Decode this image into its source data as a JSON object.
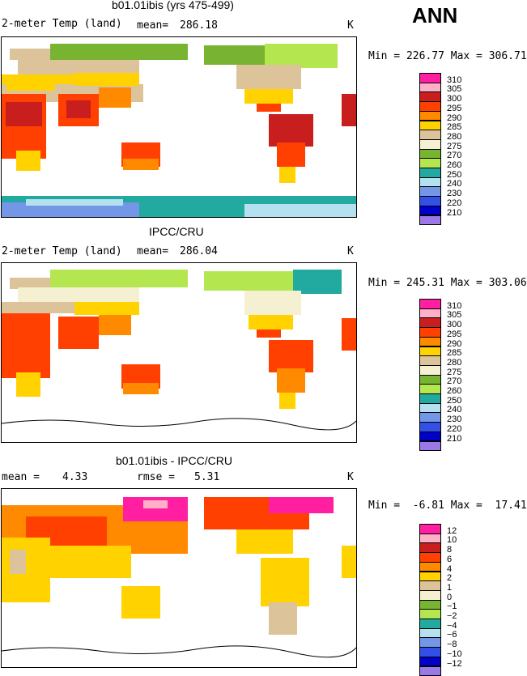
{
  "season": "ANN",
  "panels": [
    {
      "title": "b01.01ibis (yrs 475-499)",
      "left_label": "2-meter Temp (land)",
      "stat1_label": "mean=",
      "stat1_value": "286.18",
      "units": "K",
      "minmax": "Min = 226.77 Max = 306.71",
      "colorbar": {
        "labels": [
          "310",
          "305",
          "300",
          "295",
          "290",
          "285",
          "280",
          "275",
          "270",
          "260",
          "250",
          "240",
          "230",
          "220",
          "210"
        ],
        "colors": [
          "#ff1fa0",
          "#ffb0c8",
          "#c81e1e",
          "#ff4000",
          "#ff8a00",
          "#ffd200",
          "#dcc39a",
          "#f5f0d2",
          "#78b432",
          "#b4e650",
          "#22aaa0",
          "#b4e0f0",
          "#7396e6",
          "#3250e6",
          "#0000c8",
          "#9a78e6"
        ]
      }
    },
    {
      "title": "IPCC/CRU",
      "left_label": "2-meter Temp (land)",
      "stat1_label": "mean=",
      "stat1_value": "286.04",
      "units": "K",
      "minmax": "Min = 245.31 Max = 303.06",
      "colorbar": {
        "labels": [
          "310",
          "305",
          "300",
          "295",
          "290",
          "285",
          "280",
          "275",
          "270",
          "260",
          "250",
          "240",
          "230",
          "220",
          "210"
        ],
        "colors": [
          "#ff1fa0",
          "#ffb0c8",
          "#c81e1e",
          "#ff4000",
          "#ff8a00",
          "#ffd200",
          "#dcc39a",
          "#f5f0d2",
          "#78b432",
          "#b4e650",
          "#22aaa0",
          "#b4e0f0",
          "#7396e6",
          "#3250e6",
          "#0000c8",
          "#9a78e6"
        ]
      }
    },
    {
      "title": "b01.01ibis - IPCC/CRU",
      "stat1_label": "mean =",
      "stat1_value": "4.33",
      "stat2_label": "rmse =",
      "stat2_value": "5.31",
      "units": "K",
      "minmax": "Min =  -6.81 Max =  17.41",
      "colorbar": {
        "labels": [
          "12",
          "10",
          "8",
          "6",
          "4",
          "2",
          "1",
          "0",
          "−1",
          "−2",
          "−4",
          "−6",
          "−8",
          "−10",
          "−12"
        ],
        "colors": [
          "#ff1fa0",
          "#ffb0c8",
          "#c81e1e",
          "#ff4000",
          "#ff8a00",
          "#ffd200",
          "#dcc39a",
          "#f5f0d2",
          "#78b432",
          "#b4e650",
          "#22aaa0",
          "#b4e0f0",
          "#7396e6",
          "#3250e6",
          "#0000c8",
          "#9a78e6"
        ]
      }
    }
  ]
}
